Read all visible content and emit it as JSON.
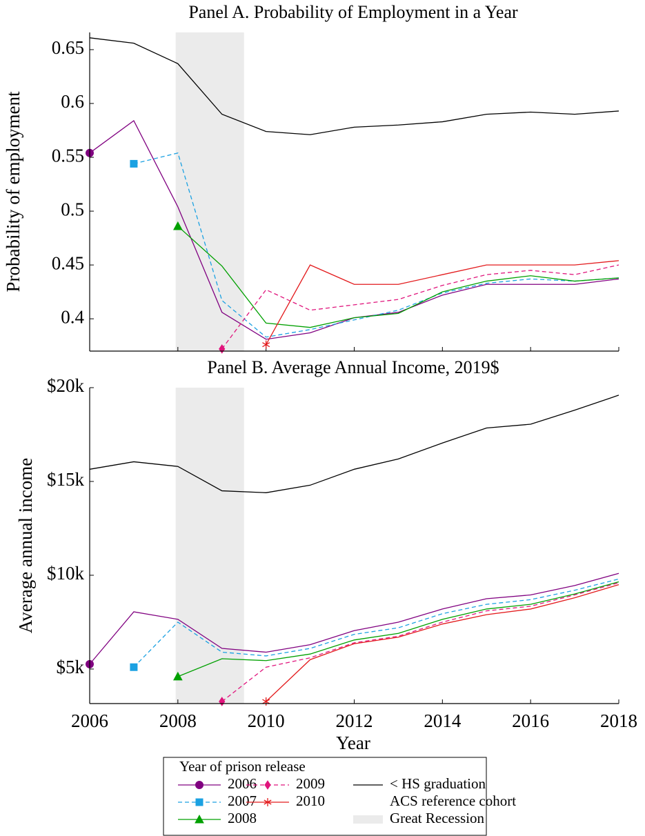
{
  "chart_data": [
    {
      "type": "line",
      "title": "Panel A. Probability of Employment in a Year",
      "ylabel": "Probability of employment",
      "x": [
        2006,
        2007,
        2008,
        2009,
        2010,
        2011,
        2012,
        2013,
        2014,
        2015,
        2016,
        2017,
        2018
      ],
      "xlim": [
        2006,
        2018
      ],
      "xticks": [
        2006,
        2008,
        2010,
        2012,
        2014,
        2016,
        2018
      ],
      "ylim": [
        0.37,
        0.666
      ],
      "yticks": [
        0.4,
        0.45,
        0.5,
        0.55,
        0.6,
        0.65
      ],
      "shaded_span": [
        2007.95,
        2009.5
      ],
      "series": [
        {
          "name": "2006",
          "color": "#800080",
          "marker": "circle",
          "dashed": false,
          "values": [
            0.554,
            0.584,
            0.504,
            0.406,
            0.381,
            0.387,
            0.401,
            0.406,
            0.422,
            0.432,
            0.432,
            0.432,
            0.437
          ]
        },
        {
          "name": "2007",
          "color": "#1ba1e2",
          "marker": "square",
          "dashed": true,
          "values": [
            null,
            0.544,
            0.554,
            0.417,
            0.383,
            0.39,
            0.399,
            0.408,
            0.424,
            0.433,
            0.437,
            0.435,
            0.438
          ]
        },
        {
          "name": "2008",
          "color": "#00a000",
          "marker": "triangle",
          "dashed": false,
          "values": [
            null,
            null,
            0.486,
            0.449,
            0.396,
            0.392,
            0.401,
            0.405,
            0.425,
            0.435,
            0.44,
            0.435,
            0.438
          ]
        },
        {
          "name": "2009",
          "color": "#e0147c",
          "marker": "diamond",
          "dashed": true,
          "values": [
            null,
            null,
            null,
            0.372,
            0.427,
            0.408,
            0.413,
            0.418,
            0.431,
            0.441,
            0.445,
            0.441,
            0.45
          ]
        },
        {
          "name": "2010",
          "color": "#e31a1c",
          "marker": "star",
          "dashed": false,
          "values": [
            null,
            null,
            null,
            null,
            0.376,
            0.45,
            0.432,
            0.432,
            0.441,
            0.45,
            0.45,
            0.45,
            0.454
          ]
        },
        {
          "name": "< HS graduation",
          "color": "#000000",
          "marker": "none",
          "dashed": false,
          "values": [
            0.661,
            0.656,
            0.637,
            0.59,
            0.574,
            0.571,
            0.578,
            0.58,
            0.583,
            0.59,
            0.592,
            0.59,
            0.593
          ]
        }
      ]
    },
    {
      "type": "line",
      "title": "Panel B. Average Annual Income, 2019$",
      "ylabel": "Average annual income",
      "xlabel": "Year",
      "x": [
        2006,
        2007,
        2008,
        2009,
        2010,
        2011,
        2012,
        2013,
        2014,
        2015,
        2016,
        2017,
        2018
      ],
      "xlim": [
        2006,
        2018
      ],
      "xticks": [
        2006,
        2008,
        2010,
        2012,
        2014,
        2016,
        2018
      ],
      "ylim": [
        3160,
        20000
      ],
      "yticks": [
        {
          "value": 5000,
          "label": "$5k"
        },
        {
          "value": 10000,
          "label": "$10k"
        },
        {
          "value": 15000,
          "label": "$15k"
        },
        {
          "value": 20000,
          "label": "$20k"
        }
      ],
      "shaded_span": [
        2007.95,
        2009.5
      ],
      "series": [
        {
          "name": "2006",
          "color": "#800080",
          "marker": "circle",
          "dashed": false,
          "values": [
            5260,
            8050,
            7650,
            6100,
            5900,
            6300,
            7050,
            7500,
            8200,
            8750,
            8950,
            9450,
            10100
          ]
        },
        {
          "name": "2007",
          "color": "#1ba1e2",
          "marker": "square",
          "dashed": true,
          "values": [
            null,
            5100,
            7500,
            5900,
            5700,
            6100,
            6850,
            7200,
            7950,
            8450,
            8700,
            9200,
            9800
          ]
        },
        {
          "name": "2008",
          "color": "#00a000",
          "marker": "triangle",
          "dashed": false,
          "values": [
            null,
            null,
            4600,
            5550,
            5450,
            5800,
            6550,
            6900,
            7650,
            8200,
            8450,
            9000,
            9650
          ]
        },
        {
          "name": "2009",
          "color": "#e0147c",
          "marker": "diamond",
          "dashed": true,
          "values": [
            null,
            null,
            null,
            3270,
            5100,
            5600,
            6400,
            6750,
            7500,
            8100,
            8350,
            8950,
            9600
          ]
        },
        {
          "name": "2010",
          "color": "#e31a1c",
          "marker": "star",
          "dashed": false,
          "values": [
            null,
            null,
            null,
            null,
            3270,
            5500,
            6350,
            6700,
            7400,
            7900,
            8200,
            8800,
            9500
          ]
        },
        {
          "name": "< HS graduation",
          "color": "#000000",
          "marker": "none",
          "dashed": false,
          "values": [
            15650,
            16050,
            15800,
            14500,
            14400,
            14800,
            15650,
            16200,
            17050,
            17850,
            18050,
            18800,
            19600
          ]
        }
      ]
    }
  ],
  "legend": {
    "title": "Year of prison release",
    "reference_note": "ACS reference cohort",
    "recession_label": "Great Recession"
  }
}
